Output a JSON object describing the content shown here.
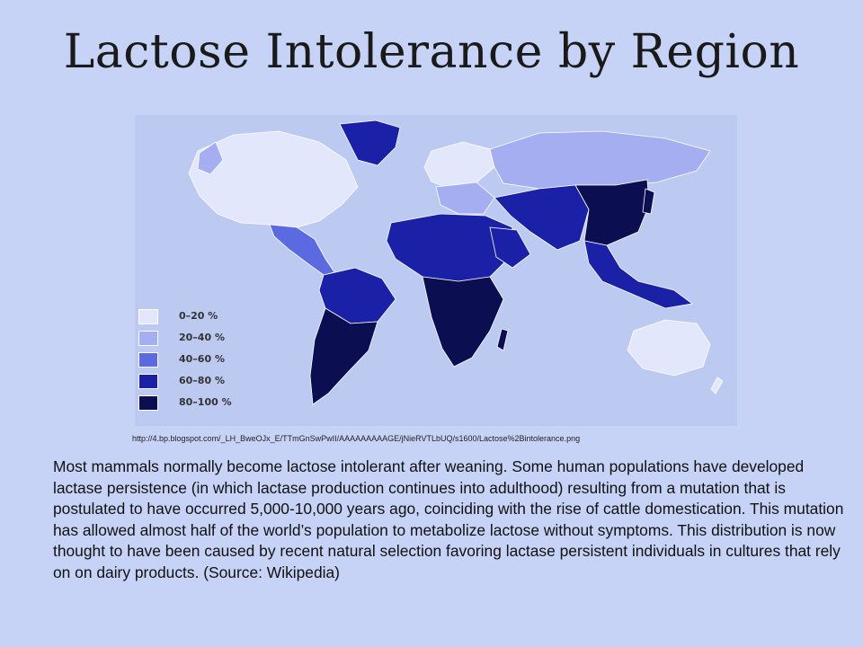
{
  "slide": {
    "title": "Lactose Intolerance by Region",
    "source_url": "http://4.bp.blogspot.com/_LH_BweOJx_E/TTmGnSwPwII/AAAAAAAAAGE/jNieRVTLbUQ/s1600/Lactose%2Bintolerance.png",
    "description": "Most mammals normally become lactose intolerant after weaning. Some human populations have developed lactase persistence (in which lactase production continues into adulthood) resulting from a mutation that is postulated to have occurred 5,000-10,000 years ago, coinciding with the rise of cattle domestication. This mutation has allowed almost half of the world’s population to metabolize lactose without symptoms. This distribution is now thought to have been caused by recent natural selection favoring lactase persistent individuals in cultures that rely on on dairy products. (Source: Wikipedia)"
  },
  "map": {
    "legend": [
      {
        "label": "0–20 %",
        "color": "#e3e7fb"
      },
      {
        "label": "20–40 %",
        "color": "#a4aef0"
      },
      {
        "label": "40–60 %",
        "color": "#5b6ae0"
      },
      {
        "label": "60–80 %",
        "color": "#1a21a6"
      },
      {
        "label": "80–100 %",
        "color": "#0b0f52"
      }
    ]
  }
}
